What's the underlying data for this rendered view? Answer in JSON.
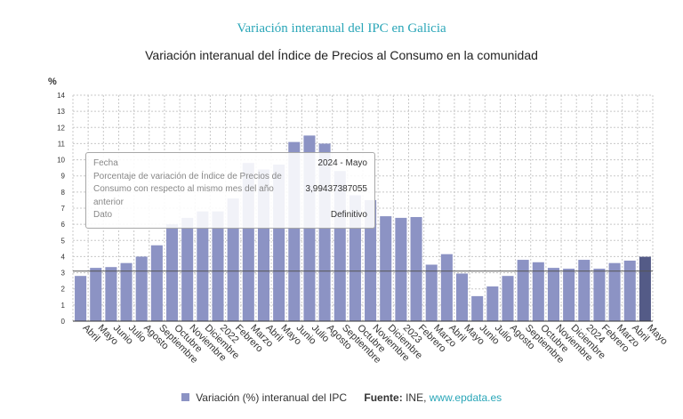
{
  "title": "Variación interanual del IPC en Galicia",
  "subtitle": "Variación interanual del Índice de Precios al Consumo en la comunidad",
  "colors": {
    "bar": "#8c93c4",
    "bar_highlight": "#545b87",
    "title": "#2aa6b8",
    "grid": "#c8c8c8",
    "ref_line": "#555555"
  },
  "chart_data": {
    "type": "bar",
    "ylabel": "%",
    "ylim": [
      0,
      14
    ],
    "yticks": [
      0,
      1,
      2,
      3,
      4,
      5,
      6,
      7,
      8,
      9,
      10,
      11,
      12,
      13,
      14
    ],
    "grid": true,
    "reference_line": 3.1,
    "highlight_index": 37,
    "categories": [
      "Abril",
      "Mayo",
      "Junio",
      "Julio",
      "Agosto",
      "Septiembre",
      "Octubre",
      "Noviembre",
      "Diciembre",
      "2022",
      "Febrero",
      "Marzo",
      "Abril",
      "Mayo",
      "Junio",
      "Julio",
      "Agosto",
      "Septiembre",
      "Octubre",
      "Noviembre",
      "Diciembre",
      "2023",
      "Febrero",
      "Marzo",
      "Abril",
      "Mayo",
      "Junio",
      "Julio",
      "Agosto",
      "Septiembre",
      "Octubre",
      "Noviembre",
      "Diciembre",
      "2024",
      "Febrero",
      "Marzo",
      "Abril",
      "Mayo"
    ],
    "series": [
      {
        "name": "Variación (%) interanual del IPC",
        "values": [
          2.8,
          3.3,
          3.35,
          3.6,
          4.0,
          4.7,
          6.0,
          6.4,
          6.8,
          6.8,
          7.6,
          9.8,
          9.4,
          9.7,
          11.1,
          11.5,
          11.0,
          9.3,
          7.8,
          7.5,
          6.5,
          6.4,
          6.45,
          3.5,
          4.15,
          2.95,
          1.55,
          2.15,
          2.8,
          3.8,
          3.65,
          3.3,
          3.25,
          3.8,
          3.25,
          3.6,
          3.75,
          3.99
        ]
      }
    ]
  },
  "tooltip": {
    "rows": [
      {
        "label": "Fecha",
        "value": "2024 - Mayo"
      },
      {
        "label": "Porcentaje de variación de Índice de Precios de Consumo con respecto al mismo mes del año anterior",
        "value": "3,99437387055"
      },
      {
        "label": "Dato",
        "value": "Definitivo"
      }
    ]
  },
  "legend": {
    "series_label": "Variación (%) interanual del IPC",
    "source_label": "Fuente:",
    "source_text": "INE,",
    "source_link": "www.epdata.es"
  }
}
